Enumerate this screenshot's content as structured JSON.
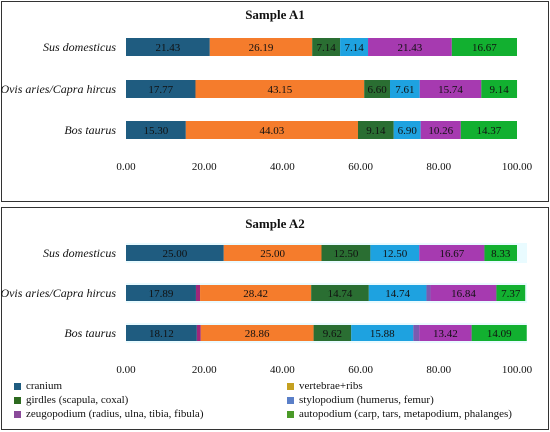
{
  "chart_data": [
    {
      "type": "bar",
      "orientation": "horizontal",
      "stacked": true,
      "title": "Sample A1",
      "categories": [
        "Sus domesticus",
        "Ovis aries/Capra hircus",
        "Bos taurus"
      ],
      "xlim": [
        0,
        100
      ],
      "xticks": [
        "0.00",
        "20.00",
        "40.00",
        "60.00",
        "80.00",
        "100.00"
      ],
      "grid": false,
      "series": [
        {
          "name": "cranium",
          "values": [
            21.43,
            17.77,
            15.3
          ],
          "labels": [
            "21.43",
            "17.77",
            "15.30"
          ]
        },
        {
          "name": "vertebrae+ribs",
          "values": [
            26.19,
            43.15,
            44.03
          ],
          "labels": [
            "26.19",
            "43.15",
            "44.03"
          ]
        },
        {
          "name": "girdles (scapula, coxal)",
          "values": [
            7.14,
            6.6,
            9.14
          ],
          "labels": [
            "7.14",
            "6.60",
            "9.14"
          ]
        },
        {
          "name": "stylopodium (humerus, femur)",
          "values": [
            7.14,
            7.61,
            6.9
          ],
          "labels": [
            "7.14",
            "7.61",
            "6.90"
          ]
        },
        {
          "name": "zeugopodium (radius, ulna, tibia, fibula)",
          "values": [
            21.43,
            15.74,
            10.26
          ],
          "labels": [
            "21.43",
            "15.74",
            "10.26"
          ]
        },
        {
          "name": "autopodium (carp, tars, metapodium, phalanges)",
          "values": [
            16.67,
            9.14,
            14.37
          ],
          "labels": [
            "16.67",
            "9.14",
            "14.37"
          ]
        }
      ]
    },
    {
      "type": "bar",
      "orientation": "horizontal",
      "stacked": true,
      "title": "Sample A2",
      "categories": [
        "Sus domesticus",
        "Ovis aries/Capra hircus",
        "Bos taurus"
      ],
      "xlim": [
        0,
        100
      ],
      "xticks": [
        "0.00",
        "20.00",
        "40.00",
        "60.00",
        "80.00",
        "100.00"
      ],
      "grid": false,
      "series": [
        {
          "name": "cranium",
          "values": [
            25.0,
            17.89,
            18.12
          ],
          "labels": [
            "25.00",
            "17.89",
            "18.12"
          ]
        },
        {
          "name": "vertebrae+ribs",
          "values": [
            0,
            1.05,
            1.0
          ],
          "labels": [
            "",
            "",
            ""
          ]
        },
        {
          "name": "vertebrae+ribs",
          "values": [
            25.0,
            28.42,
            28.86
          ],
          "labels": [
            "25.00",
            "28.42",
            "28.86"
          ]
        },
        {
          "name": "girdles (scapula, coxal)",
          "values": [
            12.5,
            14.74,
            9.62
          ],
          "labels": [
            "12.50",
            "14.74",
            "9.62"
          ]
        },
        {
          "name": "stylopodium (humerus, femur)",
          "values": [
            12.5,
            14.74,
            15.88
          ],
          "labels": [
            "12.50",
            "14.74",
            "15.88"
          ]
        },
        {
          "name": "stylopodium (humerus, femur)",
          "values": [
            0,
            1.05,
            1.5
          ],
          "labels": [
            "",
            "",
            ""
          ]
        },
        {
          "name": "zeugopodium (radius, ulna, tibia, fibula)",
          "values": [
            16.67,
            16.84,
            13.42
          ],
          "labels": [
            "16.67",
            "16.84",
            "13.42"
          ]
        },
        {
          "name": "autopodium (carp, tars, metapodium, phalanges)",
          "values": [
            8.33,
            7.37,
            14.09
          ],
          "labels": [
            "8.33",
            "7.37",
            "14.09"
          ]
        }
      ]
    }
  ],
  "legend": {
    "position": "bottom",
    "items": [
      {
        "label": "cranium",
        "color": "#1f5c80"
      },
      {
        "label": "vertebrae+ribs",
        "color": "#c4a020"
      },
      {
        "label": "girdles (scapula, coxal)",
        "color": "#2d6a1f"
      },
      {
        "label": "stylopodium (humerus, femur)",
        "color": "#5a7fc8"
      },
      {
        "label": "zeugopodium (radius, ulna, tibia, fibula)",
        "color": "#8a4a9a"
      },
      {
        "label": "autopodium (carp, tars, metapodium, phalanges)",
        "color": "#4a9a28"
      }
    ]
  },
  "colors": {
    "A1": [
      "#1f5c80",
      "#f57c2c",
      "#2a6e32",
      "#1ea2e0",
      "#a63ab0",
      "#12b030"
    ],
    "A2": [
      "#1f5c80",
      "#a0267a",
      "#f57c2c",
      "#2a6e32",
      "#1ea2e0",
      "#7a5ab0",
      "#a63ab0",
      "#12b030"
    ],
    "band": "#e9fbff"
  }
}
